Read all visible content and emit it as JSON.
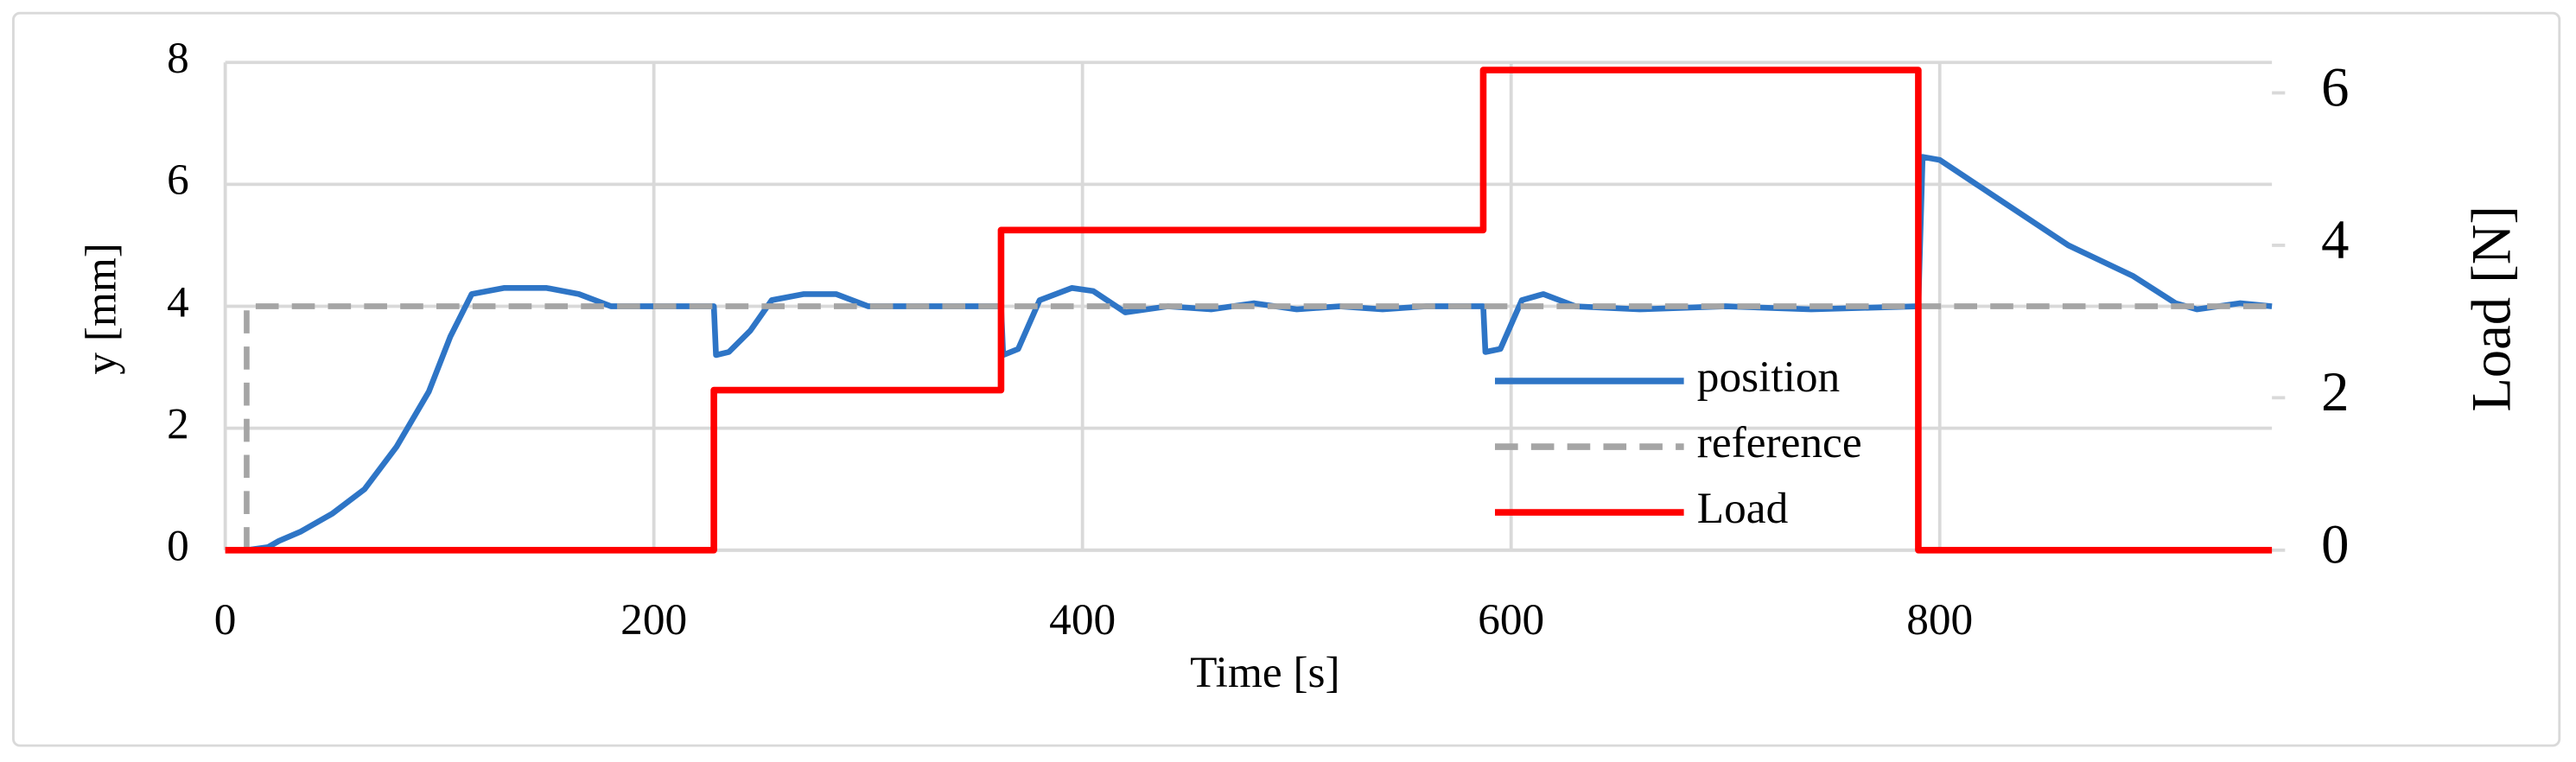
{
  "chart_data": {
    "type": "line",
    "x_label": "Time [s]",
    "y_label": "y [mm]",
    "y2_label": "Load [N]",
    "xlim": [
      0,
      955
    ],
    "xticks": [
      0,
      200,
      400,
      600,
      800
    ],
    "ylim": [
      0,
      8
    ],
    "yticks": [
      0,
      2,
      4,
      6,
      8
    ],
    "y2lim": [
      0,
      6.4
    ],
    "y2ticks": [
      0,
      2,
      4,
      6
    ],
    "grid": true,
    "series": [
      {
        "name": "position",
        "color": "#2e75c6",
        "dash": false,
        "axis": "y",
        "x": [
          2,
          10,
          20,
          25,
          35,
          50,
          65,
          80,
          95,
          105,
          115,
          130,
          150,
          165,
          180,
          200,
          228,
          229,
          235,
          245,
          255,
          270,
          285,
          300,
          320,
          362,
          363,
          370,
          380,
          395,
          405,
          420,
          440,
          460,
          480,
          500,
          520,
          540,
          560,
          587,
          588,
          595,
          605,
          615,
          630,
          660,
          700,
          740,
          790,
          792,
          800,
          830,
          860,
          890,
          910,
          920,
          940,
          955
        ],
        "values": [
          0,
          0,
          0.05,
          0.15,
          0.3,
          0.6,
          1.0,
          1.7,
          2.6,
          3.5,
          4.2,
          4.3,
          4.3,
          4.2,
          4.0,
          4.0,
          4.0,
          3.2,
          3.25,
          3.6,
          4.1,
          4.2,
          4.2,
          4.0,
          4.0,
          4.0,
          3.2,
          3.3,
          4.1,
          4.3,
          4.25,
          3.9,
          4.0,
          3.95,
          4.05,
          3.95,
          4.0,
          3.95,
          4.0,
          4.0,
          3.25,
          3.3,
          4.1,
          4.2,
          4.0,
          3.95,
          4.0,
          3.95,
          4.0,
          6.45,
          6.4,
          5.7,
          5.0,
          4.5,
          4.05,
          3.95,
          4.05,
          4.0
        ]
      },
      {
        "name": "reference",
        "color": "#a5a5a5",
        "dash": true,
        "axis": "y",
        "x": [
          10,
          10,
          955
        ],
        "values": [
          0,
          4,
          4
        ]
      },
      {
        "name": "Load",
        "color": "#ff0000",
        "dash": false,
        "axis": "y2",
        "x": [
          0,
          228,
          228,
          362,
          362,
          587,
          587,
          790,
          790,
          955
        ],
        "values": [
          0,
          0,
          2.1,
          2.1,
          4.2,
          4.2,
          6.3,
          6.3,
          0,
          0
        ]
      }
    ]
  }
}
